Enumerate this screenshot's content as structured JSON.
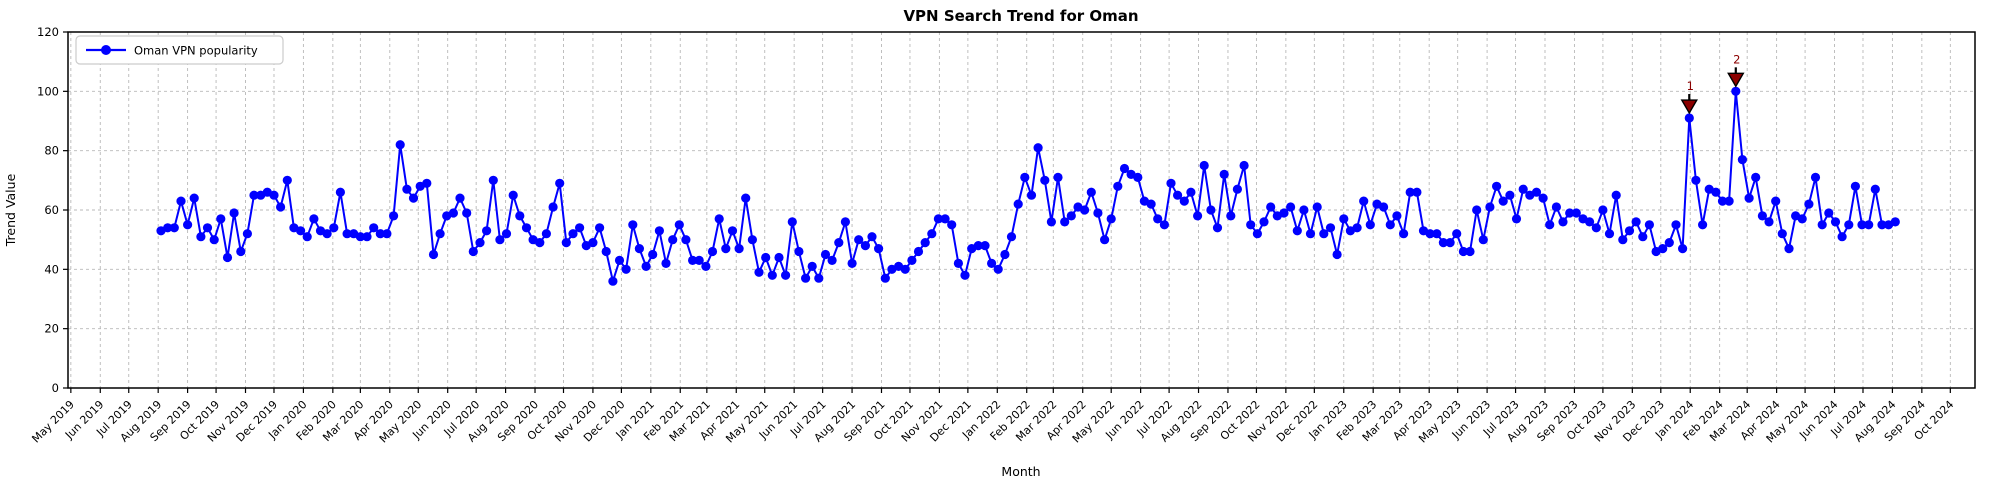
{
  "title": "VPN Search Trend for Oman",
  "legend": {
    "label": "Oman VPN popularity"
  },
  "axes": {
    "x_label": "Month",
    "y_label": "Trend Value",
    "y_ticks": [
      0,
      20,
      40,
      60,
      80,
      100,
      120
    ],
    "ylim": [
      0,
      120
    ],
    "x_tick_labels": [
      "May 2019",
      "Jun 2019",
      "Jul 2019",
      "Aug 2019",
      "Sep 2019",
      "Oct 2019",
      "Nov 2019",
      "Dec 2019",
      "Jan 2020",
      "Feb 2020",
      "Mar 2020",
      "Apr 2020",
      "May 2020",
      "Jun 2020",
      "Jul 2020",
      "Aug 2020",
      "Sep 2020",
      "Oct 2020",
      "Nov 2020",
      "Dec 2020",
      "Jan 2021",
      "Feb 2021",
      "Mar 2021",
      "Apr 2021",
      "May 2021",
      "Jun 2021",
      "Jul 2021",
      "Aug 2021",
      "Sep 2021",
      "Oct 2021",
      "Nov 2021",
      "Dec 2021",
      "Jan 2022",
      "Feb 2022",
      "Mar 2022",
      "Apr 2022",
      "May 2022",
      "Jun 2022",
      "Jul 2022",
      "Aug 2022",
      "Sep 2022",
      "Oct 2022",
      "Nov 2022",
      "Dec 2022",
      "Jan 2023",
      "Feb 2023",
      "Mar 2023",
      "Apr 2023",
      "May 2023",
      "Jun 2023",
      "Jul 2023",
      "Aug 2023",
      "Sep 2023",
      "Oct 2023",
      "Nov 2023",
      "Dec 2023",
      "Jan 2024",
      "Feb 2024",
      "Mar 2024",
      "Apr 2024",
      "May 2024",
      "Jun 2024",
      "Jul 2024",
      "Aug 2024",
      "Sep 2024",
      "Oct 2024"
    ],
    "grid": true
  },
  "colors": {
    "line": "#0000ff",
    "marker": "#0000ff",
    "annotation": "#8b0000",
    "annotation_edge": "#000000",
    "grid": "#b8b8b8",
    "spine": "#000000",
    "legend_border": "#cccccc",
    "background": "#ffffff"
  },
  "chart_data": {
    "type": "line",
    "title": "VPN Search Trend for Oman",
    "xlabel": "Month",
    "ylabel": "Trend Value",
    "ylim": [
      0,
      120
    ],
    "legend_position": "upper left",
    "grid": "dashed",
    "x_range": {
      "min": "2019-04-28",
      "max": "2024-10-27"
    },
    "series": [
      {
        "name": "Oman VPN popularity",
        "start_date": "2019-08-04",
        "frequency": "weekly",
        "values": [
          53,
          54,
          54,
          63,
          55,
          64,
          51,
          54,
          50,
          57,
          44,
          59,
          46,
          52,
          65,
          65,
          66,
          65,
          61,
          70,
          54,
          53,
          51,
          57,
          53,
          52,
          54,
          66,
          52,
          52,
          51,
          51,
          54,
          52,
          52,
          58,
          82,
          67,
          64,
          68,
          69,
          45,
          52,
          58,
          59,
          64,
          59,
          46,
          49,
          53,
          70,
          50,
          52,
          65,
          58,
          54,
          50,
          49,
          52,
          61,
          69,
          49,
          52,
          54,
          48,
          49,
          54,
          46,
          36,
          43,
          40,
          55,
          47,
          41,
          45,
          53,
          42,
          50,
          55,
          50,
          43,
          43,
          41,
          46,
          57,
          47,
          53,
          47,
          64,
          50,
          39,
          44,
          38,
          44,
          38,
          56,
          46,
          37,
          41,
          37,
          45,
          43,
          49,
          56,
          42,
          50,
          48,
          51,
          47,
          37,
          40,
          41,
          40,
          43,
          46,
          49,
          52,
          57,
          57,
          55,
          42,
          38,
          47,
          48,
          48,
          42,
          40,
          45,
          51,
          62,
          71,
          65,
          81,
          70,
          56,
          71,
          56,
          58,
          61,
          60,
          66,
          59,
          50,
          57,
          68,
          74,
          72,
          71,
          63,
          62,
          57,
          55,
          69,
          65,
          63,
          66,
          58,
          75,
          60,
          54,
          72,
          58,
          67,
          75,
          55,
          52,
          56,
          61,
          58,
          59,
          61,
          53,
          60,
          52,
          61,
          52,
          54,
          45,
          57,
          53,
          54,
          63,
          55,
          62,
          61,
          55,
          58,
          52,
          66,
          66,
          53,
          52,
          52,
          49,
          49,
          52,
          46,
          46,
          60,
          50,
          61,
          68,
          63,
          65,
          57,
          67,
          65,
          66,
          64,
          55,
          61,
          56,
          59,
          59,
          57,
          56,
          54,
          60,
          52,
          65,
          50,
          53,
          56,
          51,
          55,
          46,
          47,
          49,
          55,
          47,
          91,
          70,
          55,
          67,
          66,
          63,
          63,
          100,
          77,
          64,
          71,
          58,
          56,
          63,
          52,
          47,
          58,
          57,
          62,
          71,
          55,
          59,
          56,
          51,
          55,
          68,
          55,
          55,
          67,
          55,
          55,
          56
        ]
      }
    ],
    "annotations": [
      {
        "text": "1",
        "week_index": 230,
        "value": 91
      },
      {
        "text": "2",
        "week_index": 237,
        "value": 100
      }
    ]
  }
}
